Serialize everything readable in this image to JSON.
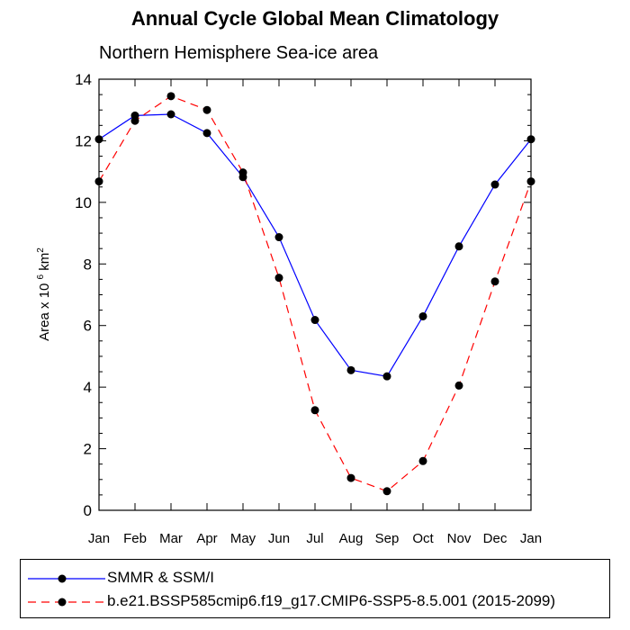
{
  "title": "Annual Cycle Global Mean Climatology",
  "subtitle": "Northern Hemisphere Sea-ice area",
  "chart_data": {
    "type": "line",
    "x": [
      "Jan",
      "Feb",
      "Mar",
      "Apr",
      "May",
      "Jun",
      "Jul",
      "Aug",
      "Sep",
      "Oct",
      "Nov",
      "Dec",
      "Jan"
    ],
    "ylabel": "Area x 10",
    "ylabel_sup": "6",
    "ylabel_unit": "km",
    "ylabel_unit_sup": "2",
    "ylim": [
      0,
      14
    ],
    "yticks": [
      0,
      2,
      4,
      6,
      8,
      10,
      12,
      14
    ],
    "grid": false,
    "legend_position": "bottom",
    "series": [
      {
        "name": "SMMR & SSM/I",
        "color": "#0000ff",
        "dash": "solid",
        "values": [
          12.05,
          12.82,
          12.86,
          12.25,
          10.82,
          8.87,
          6.18,
          4.55,
          4.35,
          6.3,
          8.57,
          10.58,
          12.05
        ]
      },
      {
        "name": "b.e21.BSSP585cmip6.f19_g17.CMIP6-SSP5-8.5.001 (2015-2099)",
        "color": "#ff0000",
        "dash": "dashed",
        "values": [
          10.68,
          12.65,
          13.45,
          13.0,
          10.97,
          7.55,
          3.25,
          1.05,
          0.62,
          1.6,
          4.05,
          7.43,
          10.68
        ]
      }
    ]
  }
}
